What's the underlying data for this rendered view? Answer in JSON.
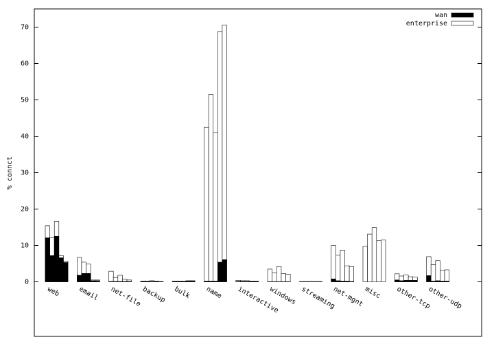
{
  "chart_data": {
    "type": "bar",
    "y_label": "% connct",
    "categories": [
      "web",
      "email",
      "net-file",
      "backup",
      "bulk",
      "name",
      "interactive",
      "windows",
      "streaming",
      "net-mgnt",
      "misc",
      "other-tcp",
      "other-udp"
    ],
    "series": [
      {
        "name": "enterprise",
        "color": "#ffffff",
        "values": [
          [
            15.4,
            12.3,
            16.6,
            7.2,
            5.7
          ],
          [
            6.7,
            5.4,
            4.9,
            0.5,
            0.5
          ],
          [
            2.9,
            1.2,
            1.8,
            0.7,
            0.5
          ],
          [
            0.2,
            0.2,
            0.3,
            0.2,
            0.1
          ],
          [
            0.2,
            0.2,
            0.2,
            0.3,
            0.3
          ],
          [
            42.5,
            51.5,
            41,
            68.8,
            70.6
          ],
          [
            0.4,
            0.3,
            0.3,
            0.2,
            0.2
          ],
          [
            3.5,
            2.5,
            4.2,
            2.3,
            2.1
          ],
          [
            0.1,
            0.1,
            0.1,
            0.1,
            0.1
          ],
          [
            10,
            7.3,
            8.7,
            4.4,
            4.2
          ],
          [
            9.8,
            13.1,
            14.9,
            11.3,
            11.5
          ],
          [
            2.2,
            1.6,
            1.9,
            1.4,
            1.3
          ],
          [
            6.9,
            4.7,
            5.8,
            3.1,
            3.3
          ]
        ]
      },
      {
        "name": "wan",
        "color": "#000000",
        "values": [
          [
            12.1,
            7.2,
            12.5,
            6.6,
            5.3
          ],
          [
            1.8,
            2.3,
            2.3,
            0.3,
            0.3
          ],
          [
            0.1,
            0.1,
            0.1,
            0.1,
            0.1
          ],
          [
            0.1,
            0.1,
            0.1,
            0.1,
            0.05
          ],
          [
            0.1,
            0.1,
            0.1,
            0.2,
            0.2
          ],
          [
            0.2,
            0.2,
            0.2,
            5.4,
            6.1
          ],
          [
            0.1,
            0.1,
            0.1,
            0.1,
            0.1
          ],
          [
            0.05,
            0.05,
            0.05,
            0.05,
            0.05
          ],
          [
            0,
            0,
            0,
            0,
            0
          ],
          [
            0.8,
            0.3,
            0.2,
            0.2,
            0.1
          ],
          [
            0,
            0,
            0,
            0,
            0
          ],
          [
            0.5,
            0.3,
            0.4,
            0.4,
            0.4
          ],
          [
            1.7,
            0.2,
            0.3,
            0.2,
            0.2
          ]
        ]
      }
    ],
    "ylim": [
      -15,
      75
    ],
    "yticks": [
      0,
      10,
      20,
      30,
      40,
      50,
      60,
      70
    ],
    "legend": "top-right",
    "legend_order": [
      1,
      0
    ]
  }
}
